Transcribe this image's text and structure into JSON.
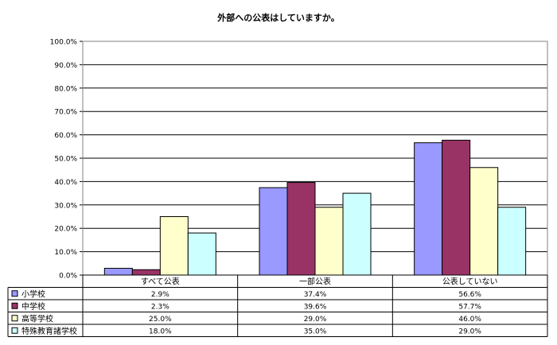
{
  "chart_data": {
    "type": "bar",
    "title": "外部への公表はしていますか。",
    "categories": [
      "すべて公表",
      "一部公表",
      "公表していない"
    ],
    "ylim": [
      0,
      100
    ],
    "yticks": [
      "0.0%",
      "10.0%",
      "20.0%",
      "30.0%",
      "40.0%",
      "50.0%",
      "60.0%",
      "70.0%",
      "80.0%",
      "90.0%",
      "100.0%"
    ],
    "grid": true,
    "legend": "data-table-left",
    "series": [
      {
        "name": "小学校",
        "color": "#9999ff",
        "values": [
          2.9,
          37.4,
          56.6
        ],
        "labels": [
          "2.9%",
          "37.4%",
          "56.6%"
        ]
      },
      {
        "name": "中学校",
        "color": "#993366",
        "values": [
          2.3,
          39.6,
          57.7
        ],
        "labels": [
          "2.3%",
          "39.6%",
          "57.7%"
        ]
      },
      {
        "name": "高等学校",
        "color": "#ffffcc",
        "values": [
          25.0,
          29.0,
          46.0
        ],
        "labels": [
          "25.0%",
          "29.0%",
          "46.0%"
        ]
      },
      {
        "name": "特殊教育諸学校",
        "color": "#ccffff",
        "values": [
          18.0,
          35.0,
          29.0
        ],
        "labels": [
          "18.0%",
          "35.0%",
          "29.0%"
        ]
      }
    ]
  }
}
